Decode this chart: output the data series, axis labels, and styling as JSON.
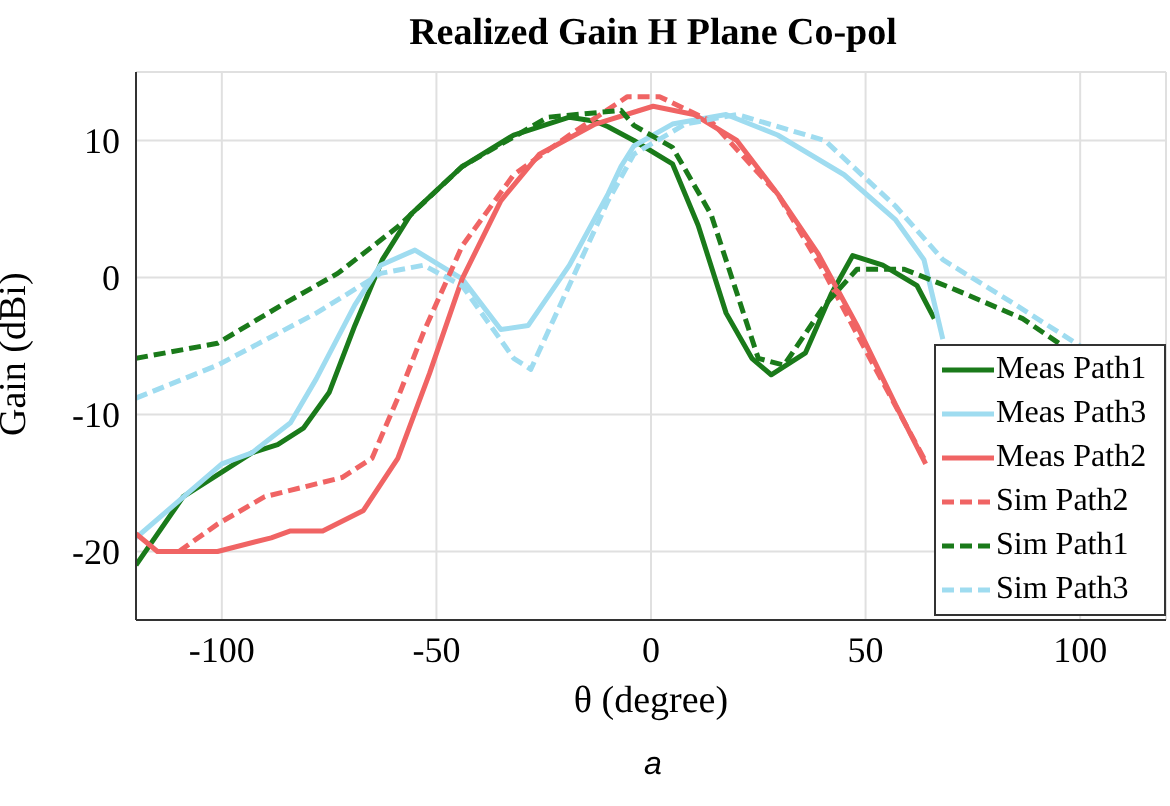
{
  "chart_data": {
    "type": "line",
    "title": "Realized Gain H Plane Co-pol",
    "xlabel": "θ (degree)",
    "ylabel": "Gain (dBi)",
    "annotations": [
      "a"
    ],
    "xlim": [
      -120,
      120
    ],
    "ylim": [
      -25,
      15
    ],
    "xticks": [
      -100,
      -50,
      0,
      50,
      100
    ],
    "yticks": [
      -20,
      -10,
      0,
      10
    ],
    "grid": true,
    "legend": "bottom right",
    "marker": "none",
    "series": [
      {
        "name": "Meas Path1",
        "color": "#1a7a1a",
        "line_style": "solid",
        "x": [
          -120,
          -109,
          -100,
          -93,
          -87,
          -81,
          -75,
          -69,
          -62.6,
          -56,
          -44,
          -32,
          -19,
          -13,
          -10,
          -4,
          5,
          11,
          17.5,
          23.5,
          28,
          36,
          42,
          47,
          54,
          62,
          66
        ],
        "values": [
          -21,
          -16,
          -14.2,
          -12.8,
          -12.2,
          -11,
          -8.4,
          -3.5,
          1.3,
          4.6,
          8.1,
          10.4,
          11.7,
          11.4,
          11,
          10,
          8.3,
          3.8,
          -2.6,
          -5.9,
          -7.1,
          -5.5,
          -1.2,
          1.6,
          0.9,
          -0.6,
          -3
        ]
      },
      {
        "name": "Meas Path3",
        "color": "#9fdcf0",
        "line_style": "solid",
        "x": [
          -120,
          -100,
          -93,
          -84,
          -78,
          -69,
          -63,
          -55,
          -44,
          -35,
          -28.6,
          -19,
          -10,
          -7,
          -4,
          5,
          17.5,
          29.5,
          45,
          57,
          63.6,
          68
        ],
        "values": [
          -19,
          -13.6,
          -12.8,
          -10.6,
          -7.4,
          -2,
          0.9,
          2,
          -0.1,
          -3.8,
          -3.5,
          0.9,
          6.1,
          8.1,
          9.6,
          11.2,
          11.9,
          10.4,
          7.5,
          4.2,
          1.3,
          -4.5
        ]
      },
      {
        "name": "Meas Path2",
        "color": "#f06464",
        "line_style": "solid",
        "x": [
          -120,
          -115,
          -101,
          -88.5,
          -84,
          -76.5,
          -67,
          -59,
          -51.6,
          -44,
          -35,
          -26,
          -13,
          0.5,
          10,
          20,
          29.5,
          39,
          48,
          57,
          64
        ],
        "values": [
          -18.7,
          -20,
          -20,
          -19,
          -18.5,
          -18.5,
          -17,
          -13.2,
          -7,
          -0.1,
          5.6,
          9,
          11.2,
          12.5,
          11.9,
          10,
          6.1,
          1.7,
          -3.5,
          -9.3,
          -13.6
        ]
      },
      {
        "name": "Sim Path2",
        "color": "#f06464",
        "line_style": "dashed",
        "x": [
          -110,
          -101,
          -90,
          -72,
          -65,
          -59,
          -53,
          -44,
          -32,
          -19,
          -5.5,
          2,
          14,
          29.5,
          40.5,
          51,
          63.6
        ],
        "values": [
          -20,
          -18,
          -16,
          -14.6,
          -13.2,
          -8.8,
          -4,
          2.3,
          7.5,
          10.4,
          13.2,
          13.2,
          11.4,
          6.1,
          0.3,
          -5.9,
          -13.2
        ]
      },
      {
        "name": "Sim Path1",
        "color": "#1a7a1a",
        "line_style": "dashed",
        "x": [
          -120,
          -101,
          -86,
          -73,
          -59,
          -44,
          -24,
          -7,
          -4,
          5,
          14,
          25,
          31,
          40.5,
          48,
          59,
          71,
          86.6,
          96
        ],
        "values": [
          -5.9,
          -4.8,
          -2,
          0.3,
          3.7,
          8.1,
          11.7,
          12.2,
          11.1,
          9.5,
          4.6,
          -5.9,
          -6.4,
          -2,
          0.6,
          0.6,
          -0.9,
          -3,
          -5
        ]
      },
      {
        "name": "Sim Path3",
        "color": "#9fdcf0",
        "line_style": "dashed",
        "x": [
          -120,
          -101,
          -78,
          -63,
          -53,
          -44,
          -32,
          -28,
          -22.6,
          -10,
          -4,
          8,
          20,
          40.5,
          57,
          68,
          85,
          100
        ],
        "values": [
          -8.8,
          -6.4,
          -2.6,
          0.3,
          0.9,
          -0.6,
          -5.9,
          -6.7,
          -3,
          5.6,
          9,
          11.2,
          11.9,
          10,
          5.2,
          1.3,
          -2,
          -5
        ]
      }
    ]
  }
}
